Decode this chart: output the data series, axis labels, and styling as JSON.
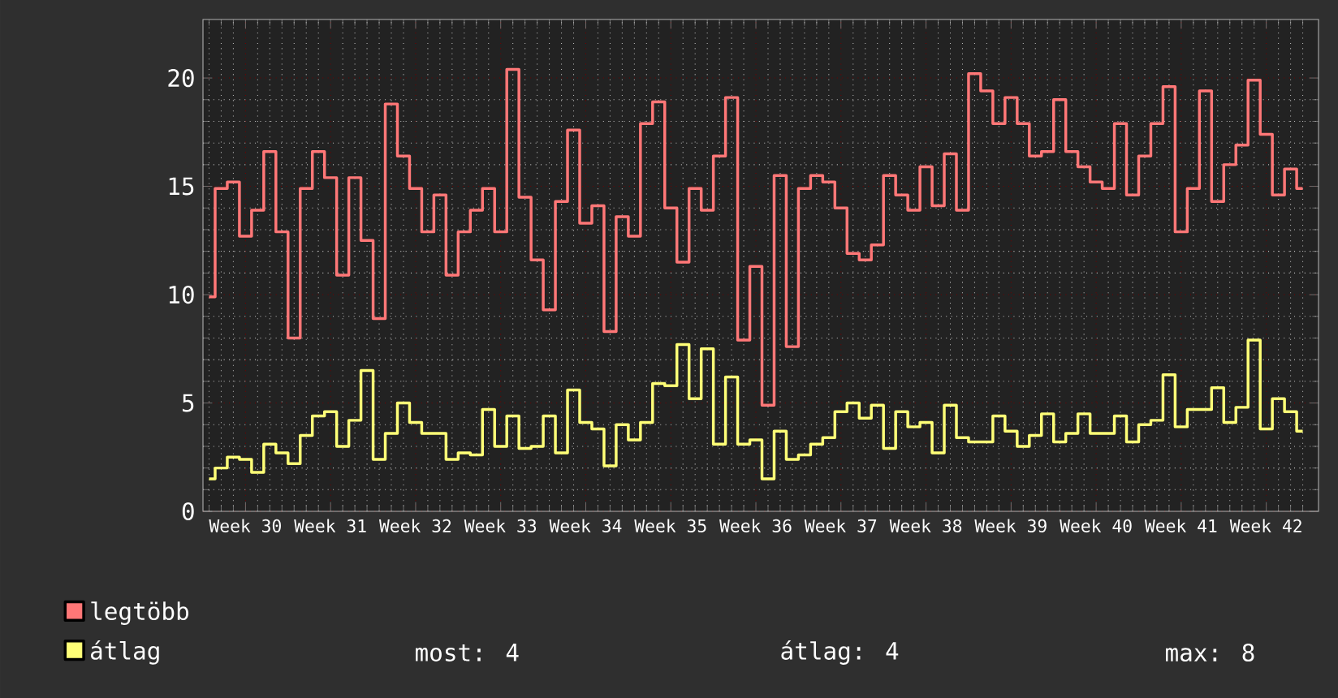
{
  "chart_data": {
    "type": "step",
    "categories": [
      null,
      null,
      null,
      "Week 30",
      null,
      null,
      null,
      null,
      null,
      null,
      "Week 31",
      null,
      null,
      null,
      null,
      null,
      null,
      "Week 32",
      null,
      null,
      null,
      null,
      null,
      null,
      "Week 33",
      null,
      null,
      null,
      null,
      null,
      null,
      "Week 34",
      null,
      null,
      null,
      null,
      null,
      null,
      "Week 35",
      null,
      null,
      null,
      null,
      null,
      null,
      "Week 36",
      null,
      null,
      null,
      null,
      null,
      null,
      "Week 37",
      null,
      null,
      null,
      null,
      null,
      null,
      "Week 38",
      null,
      null,
      null,
      null,
      null,
      null,
      "Week 39",
      null,
      null,
      null,
      null,
      null,
      null,
      "Week 40",
      null,
      null,
      null,
      null,
      null,
      null,
      "Week 41",
      null,
      null,
      null,
      null,
      null,
      null,
      "Week 42",
      null,
      null,
      null
    ],
    "series": [
      {
        "name": "legtöbb",
        "color": "#ff7777",
        "values": [
          9.9,
          14.9,
          15.2,
          12.7,
          13.9,
          16.6,
          12.9,
          8.0,
          14.9,
          16.6,
          15.4,
          10.9,
          15.4,
          12.5,
          8.9,
          18.8,
          16.4,
          14.9,
          12.9,
          14.6,
          10.9,
          12.9,
          13.9,
          14.9,
          12.9,
          20.4,
          14.5,
          11.6,
          9.3,
          14.3,
          17.6,
          13.3,
          14.1,
          8.3,
          13.6,
          12.7,
          17.9,
          18.9,
          14.0,
          11.5,
          14.9,
          13.9,
          16.4,
          19.1,
          7.9,
          11.3,
          4.9,
          15.5,
          7.6,
          14.9,
          15.5,
          15.2,
          14.0,
          11.9,
          11.6,
          12.3,
          15.5,
          14.6,
          13.9,
          15.9,
          14.1,
          16.5,
          13.9,
          20.2,
          19.4,
          17.9,
          19.1,
          17.9,
          16.4,
          16.6,
          19.0,
          16.6,
          15.9,
          15.2,
          14.9,
          17.9,
          14.6,
          16.4,
          17.9,
          19.6,
          12.9,
          14.9,
          19.4,
          14.3,
          16.0,
          16.9,
          19.9,
          17.4,
          14.6,
          15.8,
          14.9
        ]
      },
      {
        "name": "átlag",
        "color": "#ffff77",
        "values": [
          1.5,
          2.0,
          2.5,
          2.4,
          1.8,
          3.1,
          2.7,
          2.2,
          3.5,
          4.4,
          4.6,
          3.0,
          4.2,
          6.5,
          2.4,
          3.6,
          5.0,
          4.1,
          3.6,
          3.6,
          2.4,
          2.7,
          2.6,
          4.7,
          3.0,
          4.4,
          2.9,
          3.0,
          4.4,
          2.7,
          5.6,
          4.1,
          3.8,
          2.1,
          4.0,
          3.3,
          4.1,
          5.9,
          5.8,
          7.7,
          5.2,
          7.5,
          3.1,
          6.2,
          3.1,
          3.3,
          1.5,
          3.7,
          2.4,
          2.6,
          3.1,
          3.4,
          4.6,
          5.0,
          4.3,
          4.9,
          2.9,
          4.6,
          3.9,
          4.1,
          2.7,
          4.9,
          3.4,
          3.2,
          3.2,
          4.4,
          3.7,
          3.0,
          3.5,
          4.5,
          3.2,
          3.6,
          4.5,
          3.6,
          3.6,
          4.4,
          3.2,
          4.0,
          4.2,
          6.3,
          3.9,
          4.7,
          4.7,
          5.7,
          4.1,
          4.8,
          7.9,
          3.8,
          5.2,
          4.6,
          3.7
        ]
      }
    ],
    "ylim": [
      0,
      22.7
    ],
    "yticks": [
      0,
      5,
      10,
      15,
      20
    ],
    "grid": true,
    "legend": "bottom",
    "annotations": [
      "most: 4",
      "átlag: 4",
      "max: 8"
    ]
  }
}
